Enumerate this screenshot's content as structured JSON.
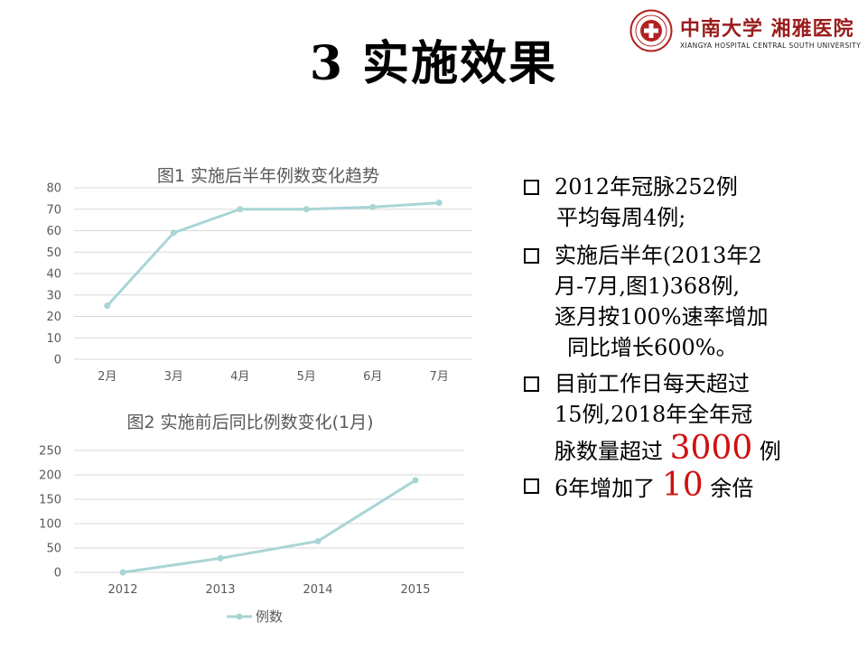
{
  "slide": {
    "title": "3 实施效果"
  },
  "logo": {
    "name_cn": "中南大学 湘雅医院",
    "name_en": "XIANGYA HOSPITAL CENTRAL SOUTH UNIVERSITY",
    "colors": {
      "seal": "#b22222",
      "text": "#9b1c1c"
    }
  },
  "bullets": {
    "b1_line1": "2012年冠脉252例",
    "b1_line2": "平均每周4例;",
    "b2_line1": "实施后半年(2013年2",
    "b2_line2": "月-7月,图1)368例,",
    "b2_line3": "逐月按100%速率增加",
    "b2_line4": "同比增长600%。",
    "b3_line1": "目前工作日每天超过",
    "b3_line2": "15例,2018年全年冠",
    "b3_line3_pre": "脉数量超过 ",
    "b3_line3_num": "3000",
    "b3_line3_post": " 例",
    "b4_pre": "6年增加了 ",
    "b4_num": "10",
    "b4_post": " 余倍",
    "highlight_color": "#d01010"
  },
  "chart_data": [
    {
      "type": "line",
      "title": "图1 实施后半年例数变化趋势",
      "categories": [
        "2月",
        "3月",
        "4月",
        "5月",
        "6月",
        "7月"
      ],
      "values": [
        25,
        59,
        70,
        70,
        71,
        73
      ],
      "yticks": [
        "0",
        "10",
        "20",
        "30",
        "40",
        "50",
        "60",
        "70",
        "80"
      ],
      "ylim": [
        0,
        80
      ],
      "grid": true,
      "color": "#a9d5d6"
    },
    {
      "type": "line",
      "title": "图2 实施前后同比例数变化(1月)",
      "categories": [
        "2012",
        "2013",
        "2014",
        "2015"
      ],
      "series": [
        {
          "name": "例数",
          "values": [
            0,
            29,
            64,
            189
          ]
        }
      ],
      "yticks": [
        "0",
        "50",
        "100",
        "150",
        "200",
        "250"
      ],
      "ylim": [
        0,
        250
      ],
      "grid": true,
      "legend": "bottom",
      "color": "#a9d5d6"
    }
  ]
}
